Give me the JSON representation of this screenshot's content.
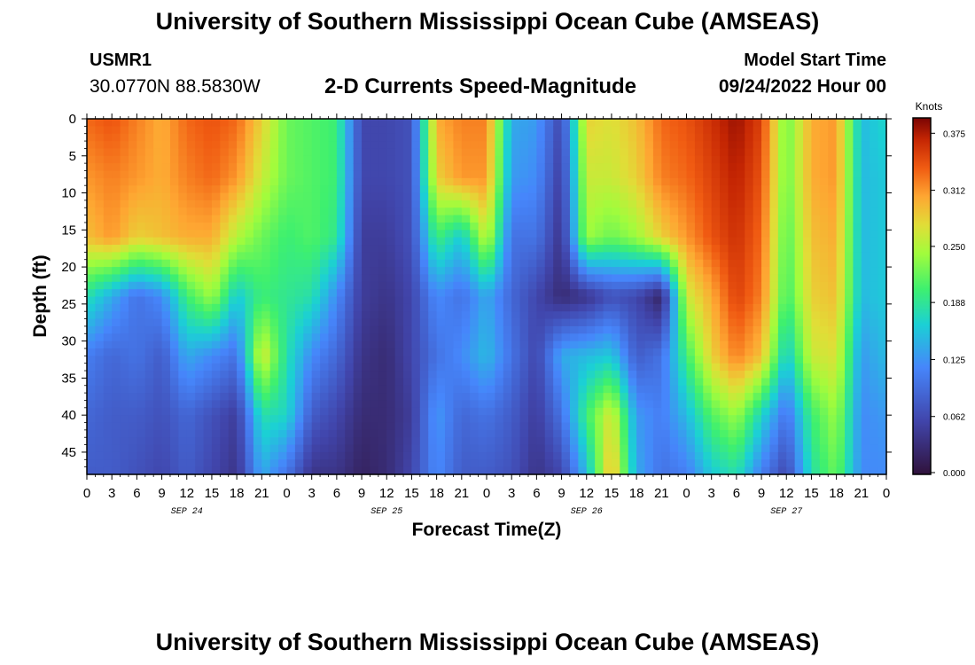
{
  "header": {
    "title": "University of Southern Mississippi Ocean Cube (AMSEAS)",
    "station": "USMR1",
    "coords": "30.0770N  88.5830W",
    "subtitle": "2-D Currents Speed-Magnitude",
    "model_start_label": "Model Start Time",
    "model_start_value": "09/24/2022 Hour 00"
  },
  "footer": {
    "title": "University of Southern Mississippi Ocean Cube (AMSEAS)"
  },
  "chart_data": {
    "type": "heatmap",
    "title": "2-D Currents Speed-Magnitude",
    "xlabel": "Forecast Time(Z)",
    "ylabel": "Depth (ft)",
    "x_ticks": [
      "0",
      "3",
      "6",
      "9",
      "12",
      "15",
      "18",
      "21",
      "0",
      "3",
      "6",
      "9",
      "12",
      "15",
      "18",
      "21",
      "0",
      "3",
      "6",
      "9",
      "12",
      "15",
      "18",
      "21",
      "0",
      "3",
      "6",
      "9",
      "12",
      "15",
      "18",
      "21",
      "0"
    ],
    "date_labels": [
      {
        "label": "SEP 24",
        "hour": 12
      },
      {
        "label": "SEP 25",
        "hour": 36
      },
      {
        "label": "SEP 26",
        "hour": 60
      },
      {
        "label": "SEP 27",
        "hour": 84
      }
    ],
    "x_range_hours": [
      0,
      96
    ],
    "y_ticks": [
      0,
      5,
      10,
      15,
      20,
      25,
      30,
      35,
      40,
      45
    ],
    "ylim": [
      0,
      48
    ],
    "colorbar": {
      "unit": "Knots",
      "ticks": [
        "0.375",
        "0.312",
        "0.250",
        "0.188",
        "0.125",
        "0.062",
        "0.000"
      ],
      "range": [
        0,
        0.39
      ]
    },
    "hours": [
      0,
      3,
      6,
      9,
      12,
      15,
      18,
      21,
      24,
      27,
      30,
      33,
      36,
      39,
      42,
      45,
      48,
      51,
      54,
      57,
      60,
      63,
      66,
      69,
      72,
      75,
      78,
      81,
      84,
      87,
      90,
      93,
      96
    ],
    "depths": [
      0,
      8,
      16,
      24,
      32,
      40,
      48
    ],
    "speed_knots": [
      [
        0.33,
        0.34,
        0.32,
        0.3,
        0.33,
        0.34,
        0.33,
        0.28,
        0.22,
        0.21,
        0.2,
        0.06,
        0.06,
        0.07,
        0.3,
        0.32,
        0.32,
        0.14,
        0.13,
        0.06,
        0.28,
        0.27,
        0.29,
        0.33,
        0.34,
        0.36,
        0.38,
        0.35,
        0.22,
        0.3,
        0.31,
        0.15,
        0.17
      ],
      [
        0.31,
        0.32,
        0.31,
        0.3,
        0.32,
        0.33,
        0.31,
        0.26,
        0.22,
        0.21,
        0.2,
        0.06,
        0.06,
        0.07,
        0.28,
        0.31,
        0.31,
        0.13,
        0.12,
        0.05,
        0.26,
        0.26,
        0.28,
        0.32,
        0.33,
        0.35,
        0.37,
        0.34,
        0.22,
        0.3,
        0.31,
        0.15,
        0.16
      ],
      [
        0.29,
        0.31,
        0.28,
        0.29,
        0.3,
        0.3,
        0.25,
        0.22,
        0.2,
        0.21,
        0.19,
        0.05,
        0.05,
        0.07,
        0.2,
        0.16,
        0.26,
        0.1,
        0.1,
        0.04,
        0.24,
        0.22,
        0.24,
        0.28,
        0.31,
        0.34,
        0.36,
        0.33,
        0.21,
        0.29,
        0.3,
        0.15,
        0.16
      ],
      [
        0.18,
        0.14,
        0.1,
        0.12,
        0.2,
        0.24,
        0.16,
        0.2,
        0.19,
        0.18,
        0.12,
        0.05,
        0.04,
        0.06,
        0.12,
        0.1,
        0.14,
        0.09,
        0.06,
        0.03,
        0.04,
        0.07,
        0.06,
        0.02,
        0.26,
        0.3,
        0.35,
        0.32,
        0.2,
        0.28,
        0.29,
        0.15,
        0.16
      ],
      [
        0.11,
        0.09,
        0.1,
        0.08,
        0.14,
        0.12,
        0.1,
        0.27,
        0.18,
        0.12,
        0.09,
        0.04,
        0.03,
        0.06,
        0.1,
        0.12,
        0.15,
        0.1,
        0.06,
        0.14,
        0.15,
        0.16,
        0.08,
        0.1,
        0.2,
        0.28,
        0.32,
        0.29,
        0.16,
        0.26,
        0.27,
        0.13,
        0.15
      ],
      [
        0.09,
        0.08,
        0.08,
        0.07,
        0.09,
        0.07,
        0.05,
        0.18,
        0.17,
        0.08,
        0.06,
        0.03,
        0.03,
        0.05,
        0.13,
        0.09,
        0.1,
        0.08,
        0.05,
        0.1,
        0.2,
        0.27,
        0.13,
        0.11,
        0.15,
        0.21,
        0.24,
        0.17,
        0.1,
        0.2,
        0.24,
        0.12,
        0.13
      ],
      [
        0.08,
        0.08,
        0.07,
        0.06,
        0.08,
        0.06,
        0.04,
        0.14,
        0.1,
        0.04,
        0.04,
        0.02,
        0.03,
        0.06,
        0.12,
        0.08,
        0.08,
        0.07,
        0.04,
        0.06,
        0.15,
        0.3,
        0.14,
        0.1,
        0.11,
        0.16,
        0.18,
        0.11,
        0.06,
        0.18,
        0.22,
        0.12,
        0.12
      ]
    ]
  }
}
